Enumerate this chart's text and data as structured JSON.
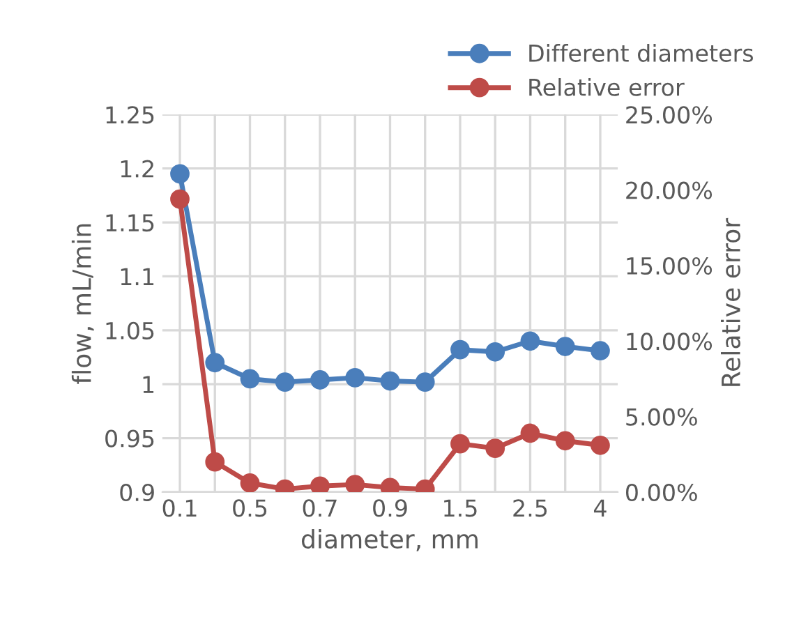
{
  "chart_data": {
    "type": "line",
    "xlabel": "diameter, mm",
    "ylabel": "flow, mL/min",
    "y2label": "Relative error",
    "categories": [
      "0.1",
      null,
      "0.5",
      null,
      "0.7",
      null,
      "0.9",
      null,
      "1.5",
      null,
      "2.5",
      null,
      "4"
    ],
    "series": [
      {
        "name": "Different diameters",
        "color": "#4a7ebb",
        "values": [
          1.195,
          1.02,
          1.005,
          1.002,
          1.004,
          1.006,
          1.003,
          1.002,
          1.032,
          1.03,
          1.04,
          1.035,
          1.031
        ]
      },
      {
        "name": "Relative error",
        "color": "#be4b48",
        "axis": "y2",
        "values": [
          19.4,
          2.0,
          0.6,
          0.2,
          0.4,
          0.5,
          0.3,
          0.2,
          3.2,
          2.9,
          3.9,
          3.4,
          3.1
        ]
      }
    ],
    "ylim": [
      0.9,
      1.25
    ],
    "yticks": [
      {
        "value": 0.9,
        "label": "0.9"
      },
      0.95,
      {
        "value": 1,
        "label": "1"
      },
      1.05,
      {
        "value": 1.1,
        "label": "1.1"
      },
      1.15,
      {
        "value": 1.2,
        "label": "1.2"
      },
      1.25
    ],
    "y2lim": [
      0,
      25
    ],
    "y2ticks": [
      {
        "value": 0,
        "label": "0.00%"
      },
      {
        "value": 5,
        "label": "5.00%"
      },
      {
        "value": 10,
        "label": "10.00%"
      },
      {
        "value": 15,
        "label": "15.00%"
      },
      {
        "value": 20,
        "label": "20.00%"
      },
      {
        "value": 25,
        "label": "25.00%"
      }
    ],
    "grid": true,
    "legend": "top right",
    "marker": "circle",
    "line_style": "solid"
  }
}
